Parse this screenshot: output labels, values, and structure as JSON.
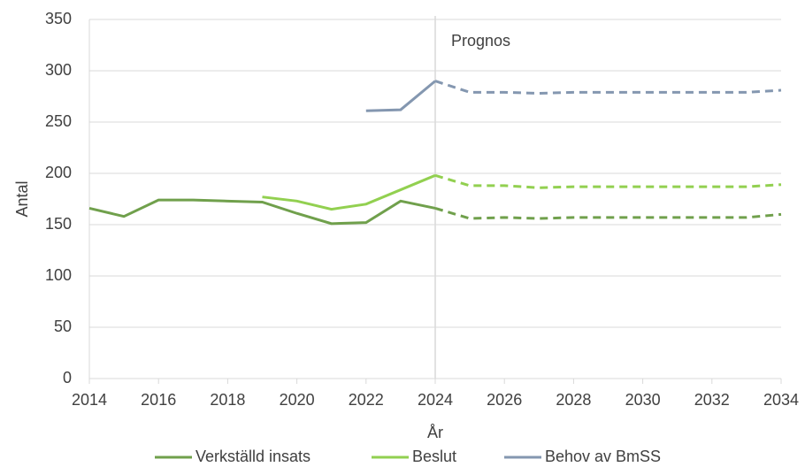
{
  "chart_data": {
    "type": "line",
    "x": [
      2014,
      2015,
      2016,
      2017,
      2018,
      2019,
      2020,
      2021,
      2022,
      2023,
      2024,
      2025,
      2026,
      2027,
      2028,
      2029,
      2030,
      2031,
      2032,
      2033,
      2034
    ],
    "series": [
      {
        "name": "Verkställd insats",
        "color": "#70a04c",
        "values": [
          166,
          158,
          174,
          174,
          173,
          172,
          161,
          151,
          152,
          173,
          166,
          156,
          157,
          156,
          157,
          157,
          157,
          157,
          157,
          157,
          160
        ]
      },
      {
        "name": "Beslut",
        "color": "#92d050",
        "values": [
          null,
          null,
          null,
          null,
          null,
          177,
          173,
          165,
          170,
          184,
          198,
          188,
          188,
          186,
          187,
          187,
          187,
          187,
          187,
          187,
          189
        ]
      },
      {
        "name": "Behov av BmSS",
        "color": "#8497b0",
        "values": [
          null,
          null,
          null,
          null,
          null,
          null,
          null,
          null,
          261,
          262,
          290,
          279,
          279,
          278,
          279,
          279,
          279,
          279,
          279,
          279,
          281
        ]
      }
    ],
    "forecast_start": 2024,
    "forecast_label": "Prognos",
    "xlabel": "År",
    "ylabel": "Antal",
    "xlim": [
      2014,
      2034
    ],
    "xticks": [
      2014,
      2016,
      2018,
      2020,
      2022,
      2024,
      2026,
      2028,
      2030,
      2032,
      2034
    ],
    "ylim": [
      0,
      350
    ],
    "yticks": [
      0,
      50,
      100,
      150,
      200,
      250,
      300,
      350
    ],
    "grid": true,
    "legend": "bottom"
  }
}
